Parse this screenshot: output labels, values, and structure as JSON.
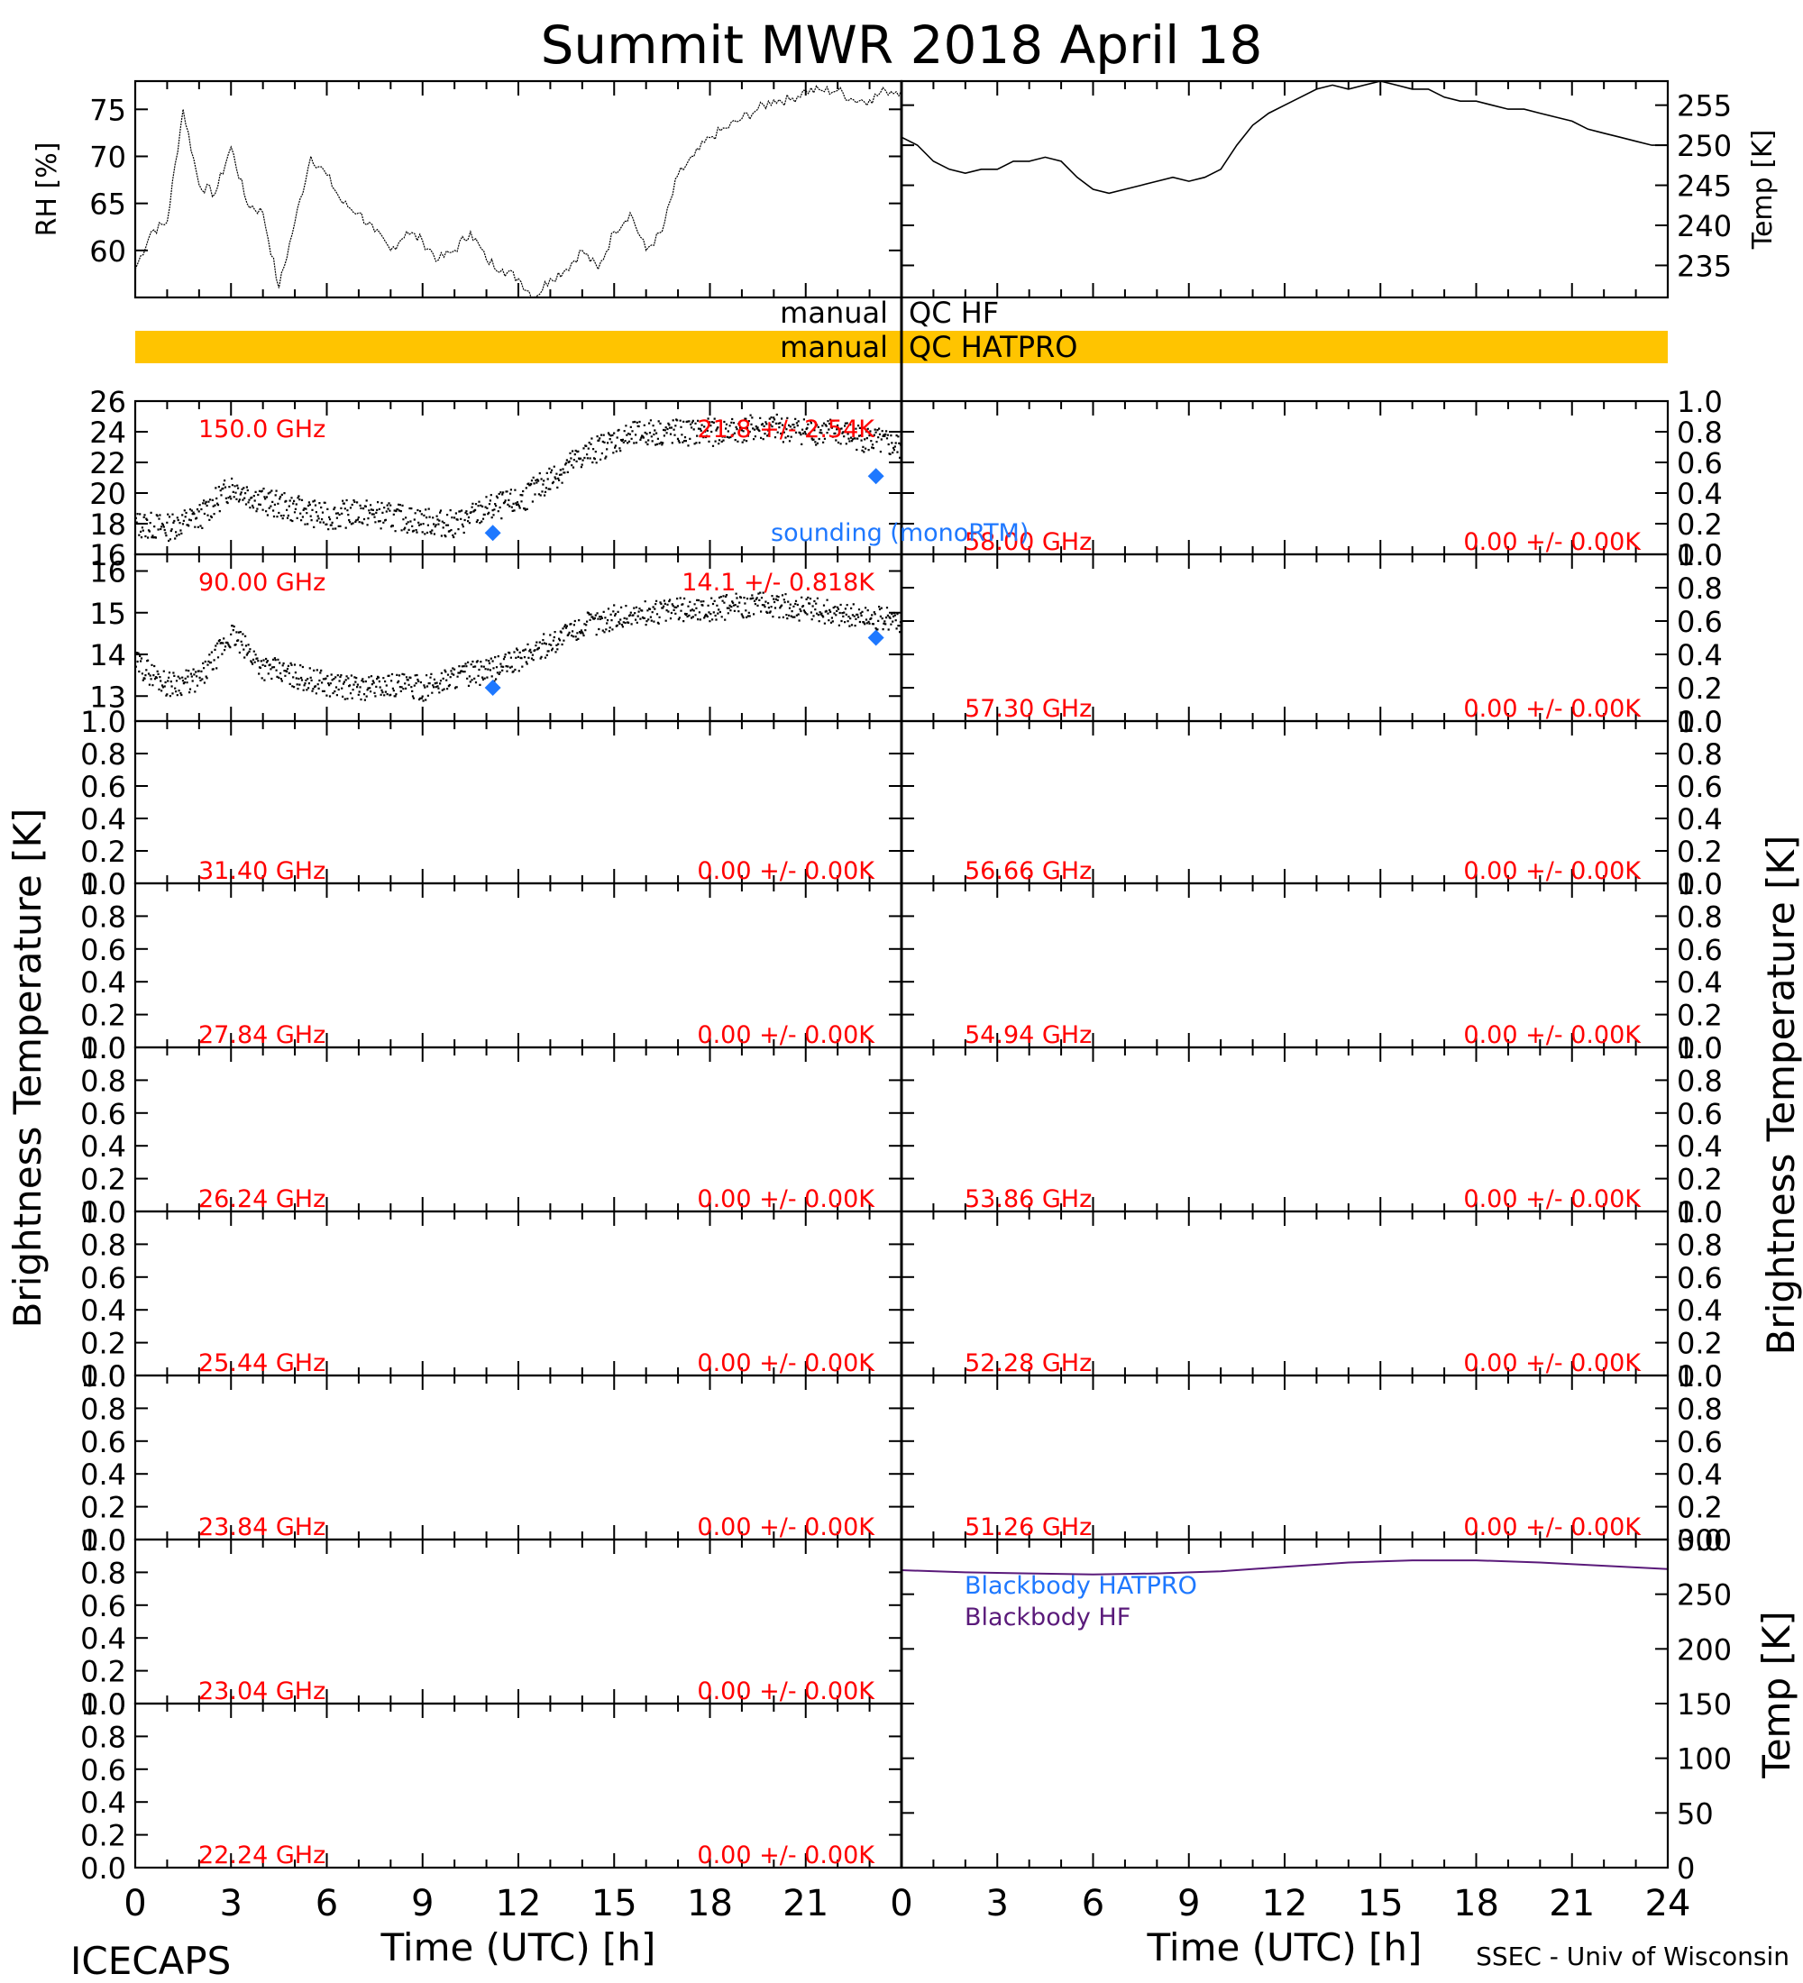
{
  "title": "Summit MWR 2018 April 18",
  "footer": {
    "left": "ICECAPS",
    "right": "SSEC - Univ of Wisconsin"
  },
  "colors": {
    "red_text": "#ff0000",
    "sounding_blue": "#1e78ff",
    "qc_bar": "#ffc400",
    "blackbody_hatpro": "#1e78ff",
    "blackbody_hf": "#5a1a7a",
    "axis": "#000000"
  },
  "qc": {
    "hf_left": "manual",
    "hf_right": "QC HF",
    "hatpro_left": "manual",
    "hatpro_right": "QC HATPRO"
  },
  "chart_data": [
    {
      "id": "rh",
      "type": "line",
      "ylabel": "RH [%]",
      "ylim": [
        55.0,
        78.0
      ],
      "yticks": [
        60,
        65,
        70,
        75
      ],
      "xlim": [
        0,
        24
      ],
      "x": [
        0,
        0.5,
        1,
        1.5,
        2,
        2.5,
        3,
        3.5,
        4,
        4.5,
        5,
        5.5,
        6,
        6.5,
        7,
        7.5,
        8,
        8.5,
        9,
        9.5,
        10,
        10.5,
        11,
        11.5,
        12,
        12.5,
        13,
        13.5,
        14,
        14.5,
        15,
        15.5,
        16,
        16.5,
        17,
        17.5,
        18,
        18.5,
        19,
        19.5,
        20,
        20.5,
        21,
        21.5,
        22,
        22.5,
        23,
        23.5,
        24
      ],
      "y": [
        58,
        62,
        63,
        75,
        67,
        66,
        71,
        65,
        64,
        56,
        63,
        70,
        68,
        65,
        64,
        62,
        60,
        62,
        61,
        59,
        60,
        62,
        59,
        58,
        57,
        55,
        57,
        58,
        60,
        58,
        62,
        64,
        60,
        62,
        68,
        70,
        72,
        73,
        74,
        75,
        76,
        76,
        77,
        77,
        77,
        76,
        76,
        77,
        77
      ]
    },
    {
      "id": "temp",
      "type": "line",
      "ylabel": "Temp [K]",
      "ylim": [
        231.0,
        258.0
      ],
      "yticks": [
        235,
        240,
        245,
        250,
        255
      ],
      "xlim": [
        0,
        24
      ],
      "x": [
        0,
        0.5,
        1,
        1.5,
        2,
        2.5,
        3,
        3.5,
        4,
        4.5,
        5,
        5.5,
        6,
        6.5,
        7,
        7.5,
        8,
        8.5,
        9,
        9.5,
        10,
        10.5,
        11,
        11.5,
        12,
        12.5,
        13,
        13.5,
        14,
        14.5,
        15,
        15.5,
        16,
        16.5,
        17,
        17.5,
        18,
        18.5,
        19,
        19.5,
        20,
        20.5,
        21,
        21.5,
        22,
        22.5,
        23,
        23.5,
        24
      ],
      "y": [
        251,
        250,
        248,
        247,
        246.5,
        247,
        247,
        248,
        248,
        248.5,
        248,
        246,
        244.5,
        244,
        244.5,
        245,
        245.5,
        246,
        245.5,
        246,
        247,
        250,
        252.5,
        254,
        255,
        256,
        257,
        257.5,
        257,
        257.5,
        258,
        257.5,
        257,
        257,
        256,
        255.5,
        255.5,
        255,
        254.5,
        254.5,
        254,
        253.5,
        253,
        252,
        251.5,
        251,
        250.5,
        250,
        250
      ]
    },
    {
      "id": "tb150",
      "type": "scatter",
      "label": "150.0 GHz",
      "stat": "21.8 +/- 2.54K",
      "ylim": [
        16.0,
        26.0
      ],
      "yticks": [
        16,
        18,
        20,
        22,
        24,
        26
      ],
      "xlim": [
        0,
        24
      ],
      "noise": 0.9,
      "x": [
        0,
        1,
        2,
        3,
        4,
        5,
        6,
        7,
        8,
        9,
        10,
        11,
        12,
        13,
        14,
        15,
        16,
        17,
        18,
        19,
        20,
        21,
        22,
        23,
        24
      ],
      "y": [
        18,
        17.8,
        18.5,
        20.5,
        19.5,
        19,
        18.5,
        18.8,
        18.5,
        18.2,
        18,
        19,
        19.5,
        21,
        22.5,
        23.5,
        24,
        24,
        24,
        24.2,
        24.3,
        24.1,
        24,
        23.5,
        23
      ],
      "sounding": [
        {
          "x": 11.2,
          "y": 17.4
        },
        {
          "x": 23.2,
          "y": 21.1
        }
      ]
    },
    {
      "id": "tb90",
      "type": "scatter",
      "label": "90.00 GHz",
      "stat": "14.1 +/- 0.818K",
      "ylim": [
        12.4,
        16.4
      ],
      "yticks": [
        13,
        14,
        15,
        16
      ],
      "xlim": [
        0,
        24
      ],
      "noise": 0.3,
      "x": [
        0,
        1,
        2,
        3,
        4,
        5,
        6,
        7,
        8,
        9,
        10,
        11,
        12,
        13,
        14,
        15,
        16,
        17,
        18,
        19,
        20,
        21,
        22,
        23,
        24
      ],
      "y": [
        13.8,
        13.3,
        13.4,
        14.5,
        13.7,
        13.5,
        13.3,
        13.2,
        13.3,
        13.2,
        13.5,
        13.6,
        13.9,
        14.3,
        14.7,
        14.9,
        15,
        15.1,
        15.1,
        15.2,
        15.2,
        15.1,
        15,
        14.9,
        14.8
      ],
      "sounding": [
        {
          "x": 11.2,
          "y": 13.2
        },
        {
          "x": 23.2,
          "y": 14.4
        }
      ]
    },
    {
      "id": "tb3140",
      "type": "scatter",
      "label": "31.40 GHz",
      "stat": "0.00 +/- 0.00K",
      "ylim": [
        0,
        1
      ],
      "yticks": [
        0.0,
        0.2,
        0.4,
        0.6,
        0.8,
        1.0
      ],
      "xlim": [
        0,
        24
      ],
      "x": [],
      "y": []
    },
    {
      "id": "tb2784",
      "type": "scatter",
      "label": "27.84 GHz",
      "stat": "0.00 +/- 0.00K",
      "ylim": [
        0,
        1
      ],
      "yticks": [
        0.0,
        0.2,
        0.4,
        0.6,
        0.8,
        1.0
      ],
      "xlim": [
        0,
        24
      ],
      "x": [],
      "y": []
    },
    {
      "id": "tb2624",
      "type": "scatter",
      "label": "26.24 GHz",
      "stat": "0.00 +/- 0.00K",
      "ylim": [
        0,
        1
      ],
      "yticks": [
        0.0,
        0.2,
        0.4,
        0.6,
        0.8,
        1.0
      ],
      "xlim": [
        0,
        24
      ],
      "x": [],
      "y": []
    },
    {
      "id": "tb2544",
      "type": "scatter",
      "label": "25.44 GHz",
      "stat": "0.00 +/- 0.00K",
      "ylim": [
        0,
        1
      ],
      "yticks": [
        0.0,
        0.2,
        0.4,
        0.6,
        0.8,
        1.0
      ],
      "xlim": [
        0,
        24
      ],
      "x": [],
      "y": []
    },
    {
      "id": "tb2384",
      "type": "scatter",
      "label": "23.84 GHz",
      "stat": "0.00 +/- 0.00K",
      "ylim": [
        0,
        1
      ],
      "yticks": [
        0.0,
        0.2,
        0.4,
        0.6,
        0.8,
        1.0
      ],
      "xlim": [
        0,
        24
      ],
      "x": [],
      "y": []
    },
    {
      "id": "tb2304",
      "type": "scatter",
      "label": "23.04 GHz",
      "stat": "0.00 +/- 0.00K",
      "ylim": [
        0,
        1
      ],
      "yticks": [
        0.0,
        0.2,
        0.4,
        0.6,
        0.8,
        1.0
      ],
      "xlim": [
        0,
        24
      ],
      "x": [],
      "y": []
    },
    {
      "id": "tb2224",
      "type": "scatter",
      "label": "22.24 GHz",
      "stat": "0.00 +/- 0.00K",
      "ylim": [
        0,
        1
      ],
      "yticks": [
        0.0,
        0.2,
        0.4,
        0.6,
        0.8,
        1.0
      ],
      "xlim": [
        0,
        24
      ],
      "x": [],
      "y": []
    },
    {
      "id": "tb5800",
      "type": "scatter",
      "label": "58.00 GHz",
      "stat": "0.00 +/- 0.00K",
      "ylim": [
        0,
        1
      ],
      "yticks": [
        0.0,
        0.2,
        0.4,
        0.6,
        0.8,
        1.0
      ],
      "xlim": [
        0,
        24
      ],
      "x": [],
      "y": []
    },
    {
      "id": "tb5730",
      "type": "scatter",
      "label": "57.30 GHz",
      "stat": "0.00 +/- 0.00K",
      "ylim": [
        0,
        1
      ],
      "yticks": [
        0.0,
        0.2,
        0.4,
        0.6,
        0.8,
        1.0
      ],
      "xlim": [
        0,
        24
      ],
      "x": [],
      "y": []
    },
    {
      "id": "tb5666",
      "type": "scatter",
      "label": "56.66 GHz",
      "stat": "0.00 +/- 0.00K",
      "ylim": [
        0,
        1
      ],
      "yticks": [
        0.0,
        0.2,
        0.4,
        0.6,
        0.8,
        1.0
      ],
      "xlim": [
        0,
        24
      ],
      "x": [],
      "y": []
    },
    {
      "id": "tb5494",
      "type": "scatter",
      "label": "54.94 GHz",
      "stat": "0.00 +/- 0.00K",
      "ylim": [
        0,
        1
      ],
      "yticks": [
        0.0,
        0.2,
        0.4,
        0.6,
        0.8,
        1.0
      ],
      "xlim": [
        0,
        24
      ],
      "x": [],
      "y": []
    },
    {
      "id": "tb5386",
      "type": "scatter",
      "label": "53.86 GHz",
      "stat": "0.00 +/- 0.00K",
      "ylim": [
        0,
        1
      ],
      "yticks": [
        0.0,
        0.2,
        0.4,
        0.6,
        0.8,
        1.0
      ],
      "xlim": [
        0,
        24
      ],
      "x": [],
      "y": []
    },
    {
      "id": "tb5228",
      "type": "scatter",
      "label": "52.28 GHz",
      "stat": "0.00 +/- 0.00K",
      "ylim": [
        0,
        1
      ],
      "yticks": [
        0.0,
        0.2,
        0.4,
        0.6,
        0.8,
        1.0
      ],
      "xlim": [
        0,
        24
      ],
      "x": [],
      "y": []
    },
    {
      "id": "tb5126",
      "type": "scatter",
      "label": "51.26 GHz",
      "stat": "0.00 +/- 0.00K",
      "ylim": [
        0,
        1
      ],
      "yticks": [
        0.0,
        0.2,
        0.4,
        0.6,
        0.8,
        1.0
      ],
      "xlim": [
        0,
        24
      ],
      "x": [],
      "y": []
    },
    {
      "id": "blackbody",
      "type": "line",
      "ylabel": "Temp [K]",
      "ylim": [
        0,
        300
      ],
      "yticks": [
        0,
        50,
        100,
        150,
        200,
        250,
        300
      ],
      "xlim": [
        0,
        24
      ],
      "series": [
        {
          "name": "Blackbody HATPRO",
          "x": [
            0,
            24
          ],
          "y": [
            0,
            0
          ]
        },
        {
          "name": "Blackbody HF",
          "x": [
            0,
            2,
            4,
            6,
            8,
            10,
            12,
            14,
            16,
            18,
            20,
            22,
            24
          ],
          "y": [
            272,
            270,
            269,
            268,
            269,
            271,
            275,
            279,
            281,
            281,
            279,
            276,
            273
          ]
        }
      ]
    }
  ],
  "axes": {
    "left_ylabel": "Brightness Temperature [K]",
    "right_ylabel": "Brightness Temperature [K]",
    "xlabel_left": "Time (UTC) [h]",
    "xlabel_right": "Time (UTC) [h]",
    "xticks": [
      0,
      3,
      6,
      9,
      12,
      15,
      18,
      21
    ],
    "xticks_right": [
      0,
      3,
      6,
      9,
      12,
      15,
      18,
      21,
      24
    ],
    "sounding_label": "sounding (monoRTM)"
  }
}
